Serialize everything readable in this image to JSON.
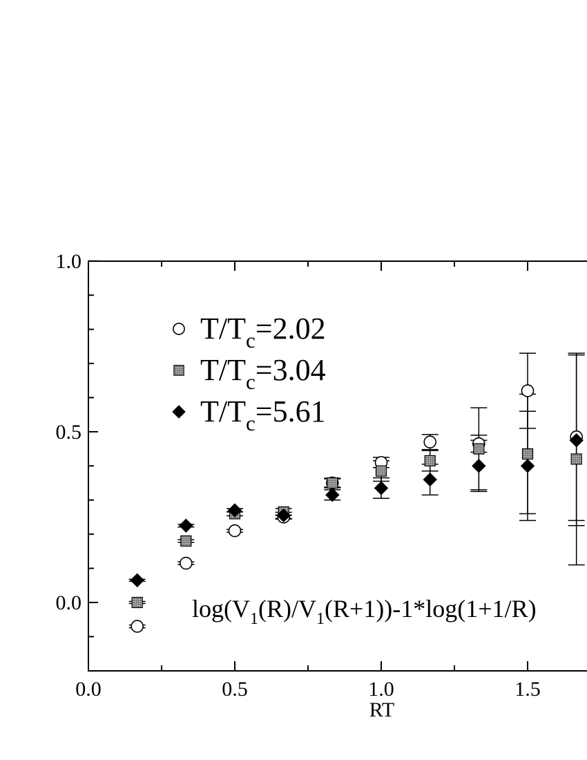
{
  "chart_data": {
    "type": "scatter",
    "title": "",
    "xlabel": "RT",
    "ylabel": "",
    "xlim": [
      0.0,
      1.75
    ],
    "ylim": [
      -0.2,
      1.0
    ],
    "x_ticks": [
      {
        "value": 0.0,
        "label": "0.0"
      },
      {
        "value": 0.5,
        "label": "0.5"
      },
      {
        "value": 1.0,
        "label": "1.0"
      },
      {
        "value": 1.5,
        "label": "1.5"
      }
    ],
    "y_ticks": [
      {
        "value": 0.0,
        "label": "0.0"
      },
      {
        "value": 0.5,
        "label": "0.5"
      },
      {
        "value": 1.0,
        "label": "1.0"
      }
    ],
    "x_minor_ticks": [
      0.25,
      0.75,
      1.25
    ],
    "y_minor_ticks": [
      -0.1,
      0.1,
      0.2,
      0.3,
      0.4,
      0.6,
      0.7,
      0.8,
      0.9
    ],
    "grid": false,
    "legend_position": "top-left",
    "annotation": {
      "text": "log(V(R)/V(R+1))-1*log(1+1/R)",
      "parts": [
        "log(V",
        "1",
        "(R)/V",
        "1",
        "(R+1))-1*log(1+1/R)"
      ],
      "x": 0.36,
      "y": -0.02
    },
    "series": [
      {
        "name": "T/Tc=2.02",
        "label_parts": [
          "T/T",
          "c",
          "=2.02"
        ],
        "marker": "open-circle",
        "points": [
          {
            "x": 0.1667,
            "y": -0.07,
            "err": 0.004
          },
          {
            "x": 0.3333,
            "y": 0.115,
            "err": 0.004
          },
          {
            "x": 0.5,
            "y": 0.21,
            "err": 0.004
          },
          {
            "x": 0.6667,
            "y": 0.25,
            "err": 0.006
          },
          {
            "x": 0.8333,
            "y": 0.35,
            "err": 0.012
          },
          {
            "x": 1.0,
            "y": 0.41,
            "err": 0.015
          },
          {
            "x": 1.1667,
            "y": 0.47,
            "err": 0.022
          },
          {
            "x": 1.3333,
            "y": 0.465,
            "err": 0.025
          },
          {
            "x": 1.5,
            "y": 0.62,
            "err": 0.11
          },
          {
            "x": 1.6667,
            "y": 0.485,
            "err": 0.245
          }
        ]
      },
      {
        "name": "T/Tc=3.04",
        "label_parts": [
          "T/T",
          "c",
          "=3.04"
        ],
        "marker": "shaded-square",
        "points": [
          {
            "x": 0.1667,
            "y": 0.0,
            "err": 0.003
          },
          {
            "x": 0.3333,
            "y": 0.18,
            "err": 0.004
          },
          {
            "x": 0.5,
            "y": 0.26,
            "err": 0.006
          },
          {
            "x": 0.6667,
            "y": 0.265,
            "err": 0.01
          },
          {
            "x": 0.8333,
            "y": 0.35,
            "err": 0.014
          },
          {
            "x": 1.0,
            "y": 0.385,
            "err": 0.03
          },
          {
            "x": 1.1667,
            "y": 0.415,
            "err": 0.03
          },
          {
            "x": 1.3333,
            "y": 0.45,
            "err": 0.12
          },
          {
            "x": 1.5,
            "y": 0.435,
            "err": 0.175
          },
          {
            "x": 1.6667,
            "y": 0.42,
            "err": 0.31
          }
        ]
      },
      {
        "name": "T/Tc=5.61",
        "label_parts": [
          "T/T",
          "c",
          "=5.61"
        ],
        "marker": "filled-diamond",
        "points": [
          {
            "x": 0.1667,
            "y": 0.065,
            "err": 0.003
          },
          {
            "x": 0.3333,
            "y": 0.225,
            "err": 0.004
          },
          {
            "x": 0.5,
            "y": 0.27,
            "err": 0.005
          },
          {
            "x": 0.6667,
            "y": 0.255,
            "err": 0.009
          },
          {
            "x": 0.8333,
            "y": 0.315,
            "err": 0.015
          },
          {
            "x": 1.0,
            "y": 0.335,
            "err": 0.03
          },
          {
            "x": 1.1667,
            "y": 0.36,
            "err": 0.045
          },
          {
            "x": 1.3333,
            "y": 0.4,
            "err": 0.075
          },
          {
            "x": 1.5,
            "y": 0.4,
            "err": 0.16
          },
          {
            "x": 1.6667,
            "y": 0.475,
            "err": 0.25
          }
        ]
      }
    ]
  }
}
